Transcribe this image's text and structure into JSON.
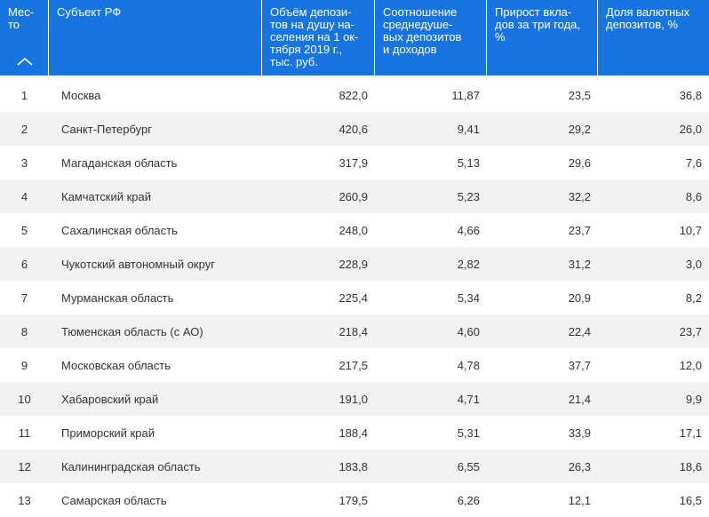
{
  "header": {
    "rank": "Мес-\nто",
    "region": "Субъект РФ",
    "volume": "Объём депози-\nтов на душу на-\nселения на 1 ок-\nтября 2019 г.,\nтыс. руб.",
    "ratio": "Соотношение\nсреднедуше-\nвых депозитов\nи доходов",
    "growth": "Прирост вкла-\nдов за три года,\n%",
    "fx_share": "Доля валютных\nдепозитов, %",
    "sort_icon": "chevron-up-icon"
  },
  "rows": [
    {
      "rank": "1",
      "region": "Москва",
      "volume": "822,0",
      "ratio": "11,87",
      "growth": "23,5",
      "fx_share": "36,8"
    },
    {
      "rank": "2",
      "region": "Санкт-Петербург",
      "volume": "420,6",
      "ratio": "9,41",
      "growth": "29,2",
      "fx_share": "26,0"
    },
    {
      "rank": "3",
      "region": "Магаданская область",
      "volume": "317,9",
      "ratio": "5,13",
      "growth": "29,6",
      "fx_share": "7,6"
    },
    {
      "rank": "4",
      "region": "Камчатский край",
      "volume": "260,9",
      "ratio": "5,23",
      "growth": "32,2",
      "fx_share": "8,6"
    },
    {
      "rank": "5",
      "region": "Сахалинская область",
      "volume": "248,0",
      "ratio": "4,66",
      "growth": "23,7",
      "fx_share": "10,7"
    },
    {
      "rank": "6",
      "region": "Чукотский автономный округ",
      "volume": "228,9",
      "ratio": "2,82",
      "growth": "31,2",
      "fx_share": "3,0"
    },
    {
      "rank": "7",
      "region": "Мурманская область",
      "volume": "225,4",
      "ratio": "5,34",
      "growth": "20,9",
      "fx_share": "8,2"
    },
    {
      "rank": "8",
      "region": "Тюменская область (с АО)",
      "volume": "218,4",
      "ratio": "4,60",
      "growth": "22,4",
      "fx_share": "23,7"
    },
    {
      "rank": "9",
      "region": "Московская область",
      "volume": "217,5",
      "ratio": "4,78",
      "growth": "37,7",
      "fx_share": "12,0"
    },
    {
      "rank": "10",
      "region": "Хабаровский край",
      "volume": "191,0",
      "ratio": "4,71",
      "growth": "21,4",
      "fx_share": "9,9"
    },
    {
      "rank": "11",
      "region": "Приморский край",
      "volume": "188,4",
      "ratio": "5,31",
      "growth": "33,9",
      "fx_share": "17,1"
    },
    {
      "rank": "12",
      "region": "Калининградская область",
      "volume": "183,8",
      "ratio": "6,55",
      "growth": "26,3",
      "fx_share": "18,6"
    },
    {
      "rank": "13",
      "region": "Самарская область",
      "volume": "179,5",
      "ratio": "6,26",
      "growth": "12,1",
      "fx_share": "16,5"
    }
  ],
  "colors": {
    "header_bg": "#1774e0",
    "header_text": "#ffffff",
    "row_alt_bg": "#f2f2f2",
    "text": "#333333"
  }
}
